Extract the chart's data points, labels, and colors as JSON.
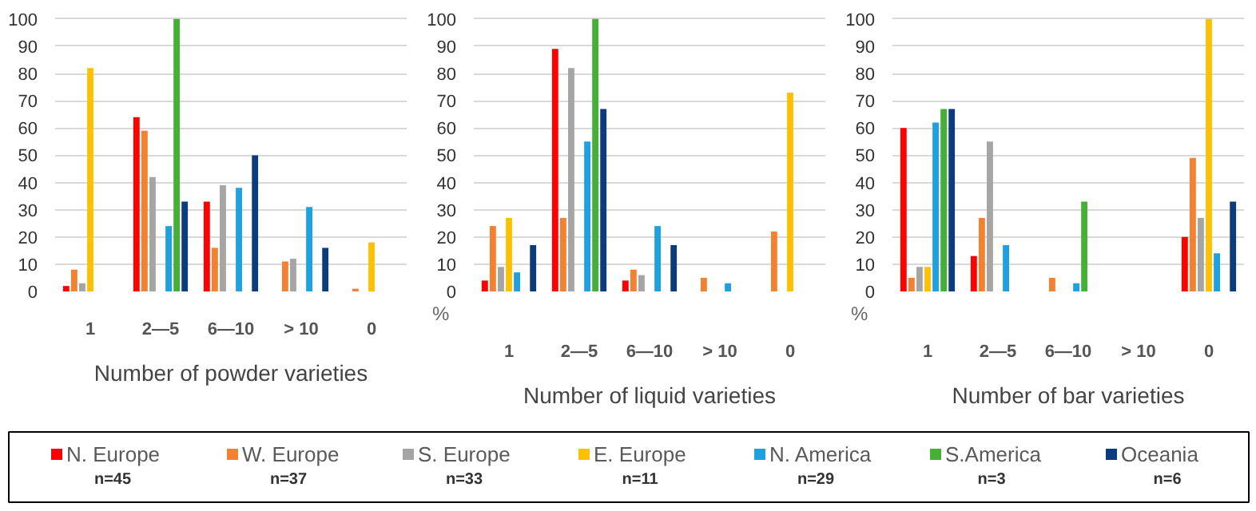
{
  "chart_data": [
    {
      "type": "bar",
      "xlabel": "Number of powder varieties",
      "categories": [
        "1",
        "2—5",
        "6—10",
        "> 10",
        "0"
      ],
      "ylim": [
        0,
        100
      ],
      "yticks": [
        0,
        10,
        20,
        30,
        40,
        50,
        60,
        70,
        80,
        90,
        100
      ],
      "grid": "y",
      "legend": "bottom",
      "annotations": [
        "n=45",
        "n=37",
        "n=33",
        "n=11",
        "n=29",
        "n=3",
        "n=6"
      ],
      "series": [
        {
          "name": "N. Europe",
          "color": "#ff0000",
          "values": [
            2,
            64,
            33,
            0,
            0
          ]
        },
        {
          "name": "W. Europe",
          "color": "#f4812f",
          "values": [
            8,
            59,
            16,
            11,
            1
          ]
        },
        {
          "name": "S. Europe",
          "color": "#a5a5a5",
          "values": [
            3,
            42,
            39,
            12,
            0
          ]
        },
        {
          "name": "E. Europe",
          "color": "#ffc000",
          "values": [
            82,
            0,
            0,
            0,
            18
          ]
        },
        {
          "name": "N. America",
          "color": "#1ea1e1",
          "values": [
            0,
            24,
            38,
            31,
            0
          ]
        },
        {
          "name": "S.America",
          "color": "#44b035",
          "values": [
            0,
            100,
            0,
            0,
            0
          ]
        },
        {
          "name": "Oceania",
          "color": "#0b3c7d",
          "values": [
            0,
            33,
            50,
            16,
            0
          ]
        }
      ]
    },
    {
      "type": "bar",
      "xlabel": "Number of liquid varieties",
      "ylabel": "%",
      "categories": [
        "1",
        "2—5",
        "6—10",
        "> 10",
        "0"
      ],
      "ylim": [
        0,
        100
      ],
      "yticks": [
        0,
        10,
        20,
        30,
        40,
        50,
        60,
        70,
        80,
        90,
        100
      ],
      "grid": "y",
      "legend": "bottom",
      "series": [
        {
          "name": "N. Europe",
          "color": "#ff0000",
          "values": [
            4,
            89,
            4,
            0,
            0
          ]
        },
        {
          "name": "W. Europe",
          "color": "#f4812f",
          "values": [
            24,
            27,
            8,
            5,
            22
          ]
        },
        {
          "name": "S. Europe",
          "color": "#a5a5a5",
          "values": [
            9,
            82,
            6,
            0,
            0
          ]
        },
        {
          "name": "E. Europe",
          "color": "#ffc000",
          "values": [
            27,
            0,
            0,
            0,
            73
          ]
        },
        {
          "name": "N. America",
          "color": "#1ea1e1",
          "values": [
            7,
            55,
            24,
            3,
            0
          ]
        },
        {
          "name": "S.America",
          "color": "#44b035",
          "values": [
            0,
            100,
            0,
            0,
            0
          ]
        },
        {
          "name": "Oceania",
          "color": "#0b3c7d",
          "values": [
            17,
            67,
            17,
            0,
            0
          ]
        }
      ]
    },
    {
      "type": "bar",
      "xlabel": "Number of bar varieties",
      "ylabel": "%",
      "categories": [
        "1",
        "2—5",
        "6—10",
        "> 10",
        "0"
      ],
      "ylim": [
        0,
        100
      ],
      "yticks": [
        0,
        10,
        20,
        30,
        40,
        50,
        60,
        70,
        80,
        90,
        100
      ],
      "grid": "y",
      "legend": "bottom",
      "series": [
        {
          "name": "N. Europe",
          "color": "#ff0000",
          "values": [
            60,
            13,
            0,
            0,
            20
          ]
        },
        {
          "name": "W. Europe",
          "color": "#f4812f",
          "values": [
            5,
            27,
            5,
            0,
            49
          ]
        },
        {
          "name": "S. Europe",
          "color": "#a5a5a5",
          "values": [
            9,
            55,
            0,
            0,
            27
          ]
        },
        {
          "name": "E. Europe",
          "color": "#ffc000",
          "values": [
            9,
            0,
            0,
            0,
            100
          ]
        },
        {
          "name": "N. America",
          "color": "#1ea1e1",
          "values": [
            62,
            17,
            3,
            0,
            14
          ]
        },
        {
          "name": "S.America",
          "color": "#44b035",
          "values": [
            67,
            0,
            33,
            0,
            0
          ]
        },
        {
          "name": "Oceania",
          "color": "#0b3c7d",
          "values": [
            67,
            0,
            0,
            0,
            33
          ]
        }
      ]
    }
  ]
}
